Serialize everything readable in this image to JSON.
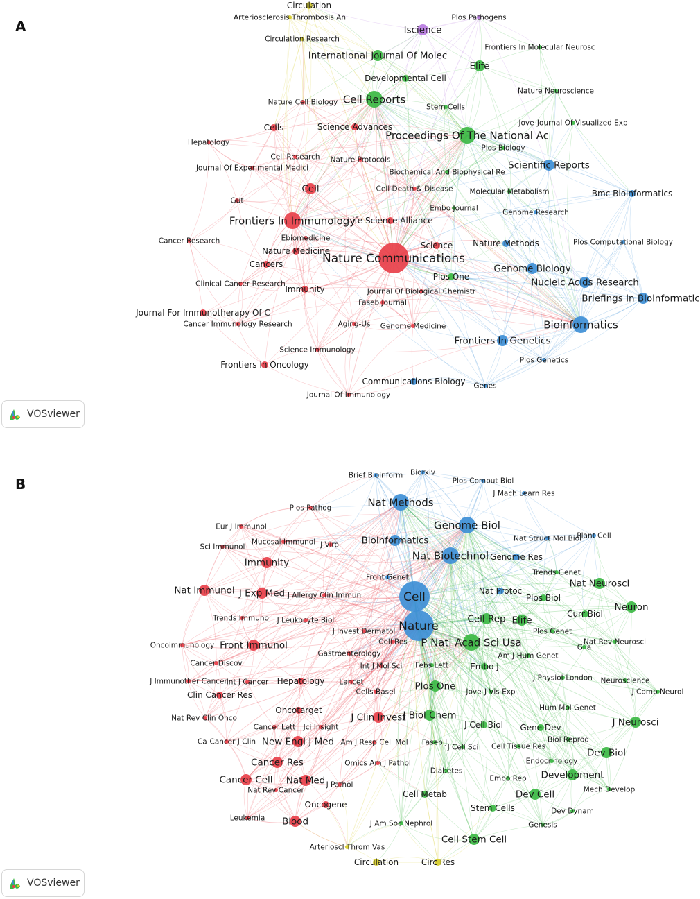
{
  "colors": {
    "red": "#e8404a",
    "green": "#3cb844",
    "blue": "#3e8fd6",
    "yellow": "#d6cc2a",
    "purple": "#b77be0"
  },
  "panels": [
    {
      "letter": "A",
      "badge": "VOSviewer",
      "nodes": [
        {
          "label": "Nature Communications",
          "cluster": "red",
          "size": "xl"
        },
        {
          "label": "Frontiers In Immunology",
          "cluster": "red",
          "size": "l"
        },
        {
          "label": "Cell",
          "cluster": "red",
          "size": "m"
        },
        {
          "label": "Cells",
          "cluster": "red",
          "size": "s"
        },
        {
          "label": "Science Advances",
          "cluster": "red",
          "size": "s"
        },
        {
          "label": "Nature Cell Biology",
          "cluster": "red",
          "size": "xs"
        },
        {
          "label": "Hepatology",
          "cluster": "red",
          "size": "xs"
        },
        {
          "label": "Cell Research",
          "cluster": "red",
          "size": "xs"
        },
        {
          "label": "Journal Of Experimental Medici",
          "cluster": "red",
          "size": "xs"
        },
        {
          "label": "Nature Protocols",
          "cluster": "red",
          "size": "xs"
        },
        {
          "label": "Gut",
          "cluster": "red",
          "size": "xs"
        },
        {
          "label": "Cell Death & Disease",
          "cluster": "red",
          "size": "xs"
        },
        {
          "label": "Life Science Alliance",
          "cluster": "red",
          "size": "s"
        },
        {
          "label": "Cancer Research",
          "cluster": "red",
          "size": "xs"
        },
        {
          "label": "Ebiomedicine",
          "cluster": "red",
          "size": "xs"
        },
        {
          "label": "Nature Medicine",
          "cluster": "red",
          "size": "s"
        },
        {
          "label": "Science",
          "cluster": "red",
          "size": "s"
        },
        {
          "label": "Cancers",
          "cluster": "red",
          "size": "s"
        },
        {
          "label": "Clinical Cancer Research",
          "cluster": "red",
          "size": "xs"
        },
        {
          "label": "Immunity",
          "cluster": "red",
          "size": "s"
        },
        {
          "label": "Journal Of Biological Chemistr",
          "cluster": "red",
          "size": "xs"
        },
        {
          "label": "Journal For Immunotherapy Of C",
          "cluster": "red",
          "size": "s"
        },
        {
          "label": "Faseb Journal",
          "cluster": "red",
          "size": "xs"
        },
        {
          "label": "Cancer Immunology Research",
          "cluster": "red",
          "size": "xs"
        },
        {
          "label": "Aging-Us",
          "cluster": "red",
          "size": "xs"
        },
        {
          "label": "Genome Medicine",
          "cluster": "red",
          "size": "xs"
        },
        {
          "label": "Science Immunology",
          "cluster": "red",
          "size": "xs"
        },
        {
          "label": "Frontiers In Oncology",
          "cluster": "red",
          "size": "s"
        },
        {
          "label": "Journal Of Immunology",
          "cluster": "red",
          "size": "xs"
        },
        {
          "label": "Cell Reports",
          "cluster": "green",
          "size": "l"
        },
        {
          "label": "International Journal Of Molec",
          "cluster": "green",
          "size": "m"
        },
        {
          "label": "Elife",
          "cluster": "green",
          "size": "m"
        },
        {
          "label": "Developmental Cell",
          "cluster": "green",
          "size": "s"
        },
        {
          "label": "Stem Cells",
          "cluster": "green",
          "size": "xs"
        },
        {
          "label": "Proceedings Of The National Ac",
          "cluster": "green",
          "size": "l"
        },
        {
          "label": "Plos Biology",
          "cluster": "green",
          "size": "xs"
        },
        {
          "label": "Nature Neuroscience",
          "cluster": "green",
          "size": "xs"
        },
        {
          "label": "Jove-Journal Of Visualized Exp",
          "cluster": "green",
          "size": "xs"
        },
        {
          "label": "Frontiers In Molecular Neurosc",
          "cluster": "green",
          "size": "xs"
        },
        {
          "label": "Biochemical And Biophysical Re",
          "cluster": "green",
          "size": "xs"
        },
        {
          "label": "Molecular Metabolism",
          "cluster": "green",
          "size": "xs"
        },
        {
          "label": "Embo Journal",
          "cluster": "green",
          "size": "xs"
        },
        {
          "label": "Plos One",
          "cluster": "green",
          "size": "s"
        },
        {
          "label": "Scientific Reports",
          "cluster": "blue",
          "size": "m"
        },
        {
          "label": "Bmc Bioinformatics",
          "cluster": "blue",
          "size": "s"
        },
        {
          "label": "Genome Research",
          "cluster": "blue",
          "size": "xs"
        },
        {
          "label": "Nature Methods",
          "cluster": "blue",
          "size": "s"
        },
        {
          "label": "Plos Computational Biology",
          "cluster": "blue",
          "size": "xs"
        },
        {
          "label": "Genome Biology",
          "cluster": "blue",
          "size": "m"
        },
        {
          "label": "Nucleic Acids Research",
          "cluster": "blue",
          "size": "m"
        },
        {
          "label": "Briefings In Bioinformatics",
          "cluster": "blue",
          "size": "m"
        },
        {
          "label": "Bioinformatics",
          "cluster": "blue",
          "size": "l"
        },
        {
          "label": "Frontiers In Genetics",
          "cluster": "blue",
          "size": "m"
        },
        {
          "label": "Plos Genetics",
          "cluster": "blue",
          "size": "xs"
        },
        {
          "label": "Communications Biology",
          "cluster": "blue",
          "size": "s"
        },
        {
          "label": "Genes",
          "cluster": "blue",
          "size": "xs"
        },
        {
          "label": "Circulation",
          "cluster": "yellow",
          "size": "s"
        },
        {
          "label": "Arteriosclerosis Thrombosis An",
          "cluster": "yellow",
          "size": "xs"
        },
        {
          "label": "Circulation Research",
          "cluster": "yellow",
          "size": "xs"
        },
        {
          "label": "Iscience",
          "cluster": "purple",
          "size": "m"
        },
        {
          "label": "Plos Pathogens",
          "cluster": "purple",
          "size": "xs"
        }
      ]
    },
    {
      "letter": "B",
      "badge": "VOSviewer",
      "nodes": [
        {
          "label": "Cell",
          "cluster": "blue",
          "size": "xl"
        },
        {
          "label": "Nature",
          "cluster": "blue",
          "size": "xl"
        },
        {
          "label": "Nat Methods",
          "cluster": "blue",
          "size": "l"
        },
        {
          "label": "Genome Biol",
          "cluster": "blue",
          "size": "l"
        },
        {
          "label": "Bioinformatics",
          "cluster": "blue",
          "size": "m"
        },
        {
          "label": "Nat Biotechnol",
          "cluster": "blue",
          "size": "l"
        },
        {
          "label": "Genome Res",
          "cluster": "blue",
          "size": "s"
        },
        {
          "label": "Brief Bioinform",
          "cluster": "blue",
          "size": "xs"
        },
        {
          "label": "Biorxiv",
          "cluster": "blue",
          "size": "xs"
        },
        {
          "label": "Plos Comput Biol",
          "cluster": "blue",
          "size": "xs"
        },
        {
          "label": "J Mach Learn Res",
          "cluster": "blue",
          "size": "xs"
        },
        {
          "label": "Nat Struct Mol Biol",
          "cluster": "blue",
          "size": "xs"
        },
        {
          "label": "Plant Cell",
          "cluster": "blue",
          "size": "xs"
        },
        {
          "label": "Front Genet",
          "cluster": "blue",
          "size": "xs"
        },
        {
          "label": "Nat Protoc",
          "cluster": "blue",
          "size": "s"
        },
        {
          "label": "Nat Immunol",
          "cluster": "red",
          "size": "m"
        },
        {
          "label": "Immunity",
          "cluster": "red",
          "size": "m"
        },
        {
          "label": "J Exp Med",
          "cluster": "red",
          "size": "m"
        },
        {
          "label": "Plos Pathog",
          "cluster": "red",
          "size": "xs"
        },
        {
          "label": "Eur J Immunol",
          "cluster": "red",
          "size": "xs"
        },
        {
          "label": "Sci Immunol",
          "cluster": "red",
          "size": "xs"
        },
        {
          "label": "Mucosal Immunol",
          "cluster": "red",
          "size": "xs"
        },
        {
          "label": "J Virol",
          "cluster": "red",
          "size": "xs"
        },
        {
          "label": "J Allergy Clin Immun",
          "cluster": "red",
          "size": "xs"
        },
        {
          "label": "Trends Immunol",
          "cluster": "red",
          "size": "xs"
        },
        {
          "label": "J Leukocyte Biol",
          "cluster": "red",
          "size": "xs"
        },
        {
          "label": "J Invest Dermatol",
          "cluster": "red",
          "size": "xs"
        },
        {
          "label": "Oncoimmunology",
          "cluster": "red",
          "size": "xs"
        },
        {
          "label": "Front Immunol",
          "cluster": "red",
          "size": "m"
        },
        {
          "label": "Cell Res",
          "cluster": "red",
          "size": "xs"
        },
        {
          "label": "Gastroenterology",
          "cluster": "red",
          "size": "xs"
        },
        {
          "label": "Cancer Discov",
          "cluster": "red",
          "size": "xs"
        },
        {
          "label": "J Immunother Cancer",
          "cluster": "red",
          "size": "xs"
        },
        {
          "label": "Int J Cancer",
          "cluster": "red",
          "size": "xs"
        },
        {
          "label": "Hepatology",
          "cluster": "red",
          "size": "s"
        },
        {
          "label": "Int J Mol Sci",
          "cluster": "red",
          "size": "xs"
        },
        {
          "label": "Clin Cancer Res",
          "cluster": "red",
          "size": "s"
        },
        {
          "label": "Lancet",
          "cluster": "red",
          "size": "xs"
        },
        {
          "label": "Cells-Basel",
          "cluster": "red",
          "size": "xs"
        },
        {
          "label": "Nat Rev Clin Oncol",
          "cluster": "red",
          "size": "xs"
        },
        {
          "label": "Oncotarget",
          "cluster": "red",
          "size": "s"
        },
        {
          "label": "J Clin Invest",
          "cluster": "red",
          "size": "m"
        },
        {
          "label": "Cancer Lett",
          "cluster": "red",
          "size": "xs"
        },
        {
          "label": "Jci Insight",
          "cluster": "red",
          "size": "xs"
        },
        {
          "label": "Ca-Cancer J Clin",
          "cluster": "red",
          "size": "xs"
        },
        {
          "label": "New Engl J Med",
          "cluster": "red",
          "size": "m"
        },
        {
          "label": "Am J Resp Cell Mol",
          "cluster": "red",
          "size": "xs"
        },
        {
          "label": "Cancer Res",
          "cluster": "red",
          "size": "m"
        },
        {
          "label": "Omics Am J Pathol",
          "cluster": "red",
          "size": "xs"
        },
        {
          "label": "Cancer Cell",
          "cluster": "red",
          "size": "m"
        },
        {
          "label": "Nat Med",
          "cluster": "red",
          "size": "m"
        },
        {
          "label": "J Pathol",
          "cluster": "red",
          "size": "xs"
        },
        {
          "label": "Nat Rev Cancer",
          "cluster": "red",
          "size": "xs"
        },
        {
          "label": "Oncogene",
          "cluster": "red",
          "size": "s"
        },
        {
          "label": "Leukemia",
          "cluster": "red",
          "size": "xs"
        },
        {
          "label": "Blood",
          "cluster": "red",
          "size": "m"
        },
        {
          "label": "P Natl Acad Sci Usa",
          "cluster": "green",
          "size": "l"
        },
        {
          "label": "Cell Rep",
          "cluster": "green",
          "size": "m"
        },
        {
          "label": "Elife",
          "cluster": "green",
          "size": "m"
        },
        {
          "label": "Trends Genet",
          "cluster": "green",
          "size": "xs"
        },
        {
          "label": "Nat Neurosci",
          "cluster": "green",
          "size": "m"
        },
        {
          "label": "Plos Biol",
          "cluster": "green",
          "size": "s"
        },
        {
          "label": "Neuron",
          "cluster": "green",
          "size": "m"
        },
        {
          "label": "Curr Biol",
          "cluster": "green",
          "size": "s"
        },
        {
          "label": "Plos Genet",
          "cluster": "green",
          "size": "xs"
        },
        {
          "label": "Nat Rev Neurosci",
          "cluster": "green",
          "size": "xs"
        },
        {
          "label": "Am J Hum Genet",
          "cluster": "green",
          "size": "xs"
        },
        {
          "label": "Glia",
          "cluster": "green",
          "size": "xs"
        },
        {
          "label": "Febs Lett",
          "cluster": "green",
          "size": "xs"
        },
        {
          "label": "Embo J",
          "cluster": "green",
          "size": "s"
        },
        {
          "label": "J Physiol-London",
          "cluster": "green",
          "size": "xs"
        },
        {
          "label": "Neuroscience",
          "cluster": "green",
          "size": "xs"
        },
        {
          "label": "Plos One",
          "cluster": "green",
          "size": "m"
        },
        {
          "label": "J Comp Neurol",
          "cluster": "green",
          "size": "xs"
        },
        {
          "label": "Jove-J Vis Exp",
          "cluster": "green",
          "size": "xs"
        },
        {
          "label": "Hum Mol Genet",
          "cluster": "green",
          "size": "xs"
        },
        {
          "label": "J Biol Chem",
          "cluster": "green",
          "size": "m"
        },
        {
          "label": "J Neurosci",
          "cluster": "green",
          "size": "m"
        },
        {
          "label": "J Cell Biol",
          "cluster": "green",
          "size": "s"
        },
        {
          "label": "Gene Dev",
          "cluster": "green",
          "size": "s"
        },
        {
          "label": "Biol Reprod",
          "cluster": "green",
          "size": "xs"
        },
        {
          "label": "Faseb J",
          "cluster": "green",
          "size": "xs"
        },
        {
          "label": "J Cell Sci",
          "cluster": "green",
          "size": "xs"
        },
        {
          "label": "Cell Tissue Res",
          "cluster": "green",
          "size": "xs"
        },
        {
          "label": "Dev Biol",
          "cluster": "green",
          "size": "m"
        },
        {
          "label": "Endocrinology",
          "cluster": "green",
          "size": "xs"
        },
        {
          "label": "Development",
          "cluster": "green",
          "size": "m"
        },
        {
          "label": "Diabetes",
          "cluster": "green",
          "size": "xs"
        },
        {
          "label": "Embo Rep",
          "cluster": "green",
          "size": "xs"
        },
        {
          "label": "Mech Develop",
          "cluster": "green",
          "size": "xs"
        },
        {
          "label": "Cell Metab",
          "cluster": "green",
          "size": "s"
        },
        {
          "label": "Dev Cell",
          "cluster": "green",
          "size": "m"
        },
        {
          "label": "Stem Cells",
          "cluster": "green",
          "size": "s"
        },
        {
          "label": "Dev Dynam",
          "cluster": "green",
          "size": "xs"
        },
        {
          "label": "J Am Soc Nephrol",
          "cluster": "green",
          "size": "xs"
        },
        {
          "label": "Genesis",
          "cluster": "green",
          "size": "xs"
        },
        {
          "label": "Cell Stem Cell",
          "cluster": "green",
          "size": "m"
        },
        {
          "label": "Arterioscl Throm Vas",
          "cluster": "yellow",
          "size": "xs"
        },
        {
          "label": "Circulation",
          "cluster": "yellow",
          "size": "s"
        },
        {
          "label": "Circ Res",
          "cluster": "yellow",
          "size": "s"
        }
      ]
    }
  ]
}
